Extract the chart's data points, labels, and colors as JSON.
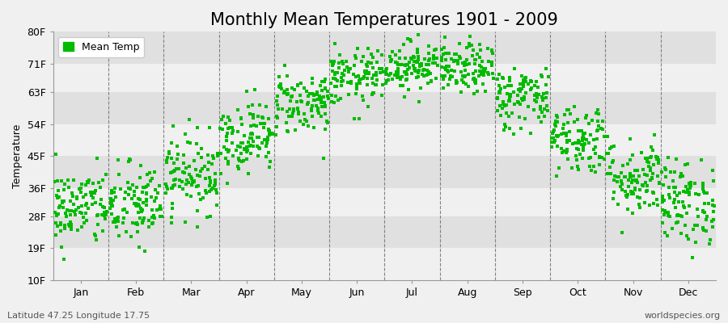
{
  "title": "Monthly Mean Temperatures 1901 - 2009",
  "ylabel": "Temperature",
  "xlabel": "",
  "bottom_left_text": "Latitude 47.25 Longitude 17.75",
  "bottom_right_text": "worldspecies.org",
  "legend_label": "Mean Temp",
  "dot_color": "#00bb00",
  "background_color": "#f0f0f0",
  "plot_bg_color": "#ffffff",
  "band_color_light": "#f0f0f0",
  "band_color_dark": "#e0e0e0",
  "yticks": [
    10,
    19,
    28,
    36,
    45,
    54,
    63,
    71,
    80
  ],
  "ytick_labels": [
    "10F",
    "19F",
    "28F",
    "36F",
    "45F",
    "54F",
    "63F",
    "71F",
    "80F"
  ],
  "ylim": [
    10,
    80
  ],
  "months": [
    "Jan",
    "Feb",
    "Mar",
    "Apr",
    "May",
    "Jun",
    "Jul",
    "Aug",
    "Sep",
    "Oct",
    "Nov",
    "Dec"
  ],
  "month_means_F": [
    30.5,
    31.0,
    40.0,
    50.5,
    60.0,
    67.0,
    70.5,
    69.5,
    61.5,
    50.0,
    39.0,
    32.0
  ],
  "month_stds_F": [
    5.5,
    6.0,
    5.5,
    5.0,
    4.5,
    4.0,
    3.5,
    3.5,
    4.5,
    5.0,
    5.5,
    6.0
  ],
  "n_years": 109,
  "random_seed": 42,
  "dot_size": 5,
  "figsize": [
    9.0,
    4.0
  ],
  "dpi": 100,
  "title_fontsize": 15,
  "axis_label_fontsize": 9,
  "tick_fontsize": 9,
  "annotation_fontsize": 8
}
